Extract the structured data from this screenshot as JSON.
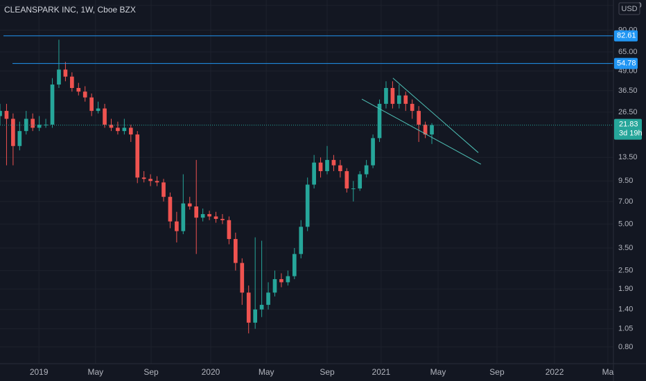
{
  "chart_data": {
    "type": "candlestick",
    "title": "CLEANSPARK INC, 1W, Cboe BZX",
    "currency": "USD",
    "countdown": "3d 19h",
    "x": [
      0,
      2,
      4,
      6,
      8,
      10,
      12,
      14,
      16,
      18,
      20,
      22,
      24,
      26,
      28,
      30,
      32,
      34,
      36,
      38,
      40,
      42,
      44,
      46,
      48,
      50,
      52,
      54,
      56,
      58,
      60,
      62,
      64,
      66,
      68,
      70,
      72,
      74,
      76,
      78,
      80,
      82,
      84,
      86,
      88,
      90,
      92,
      94,
      96,
      98,
      100,
      102,
      104,
      106,
      108,
      110,
      112,
      114,
      116,
      118,
      120,
      122,
      124,
      126,
      128,
      130,
      132
    ],
    "open": [
      25,
      27,
      24,
      16,
      20,
      24,
      21,
      22,
      22,
      40,
      50,
      45,
      38,
      36,
      33,
      27,
      28,
      22,
      21,
      20,
      21,
      19,
      10,
      9.8,
      9.5,
      9.3,
      7.5,
      5.2,
      4.5,
      6.8,
      6.5,
      5.5,
      5.8,
      5.6,
      5.4,
      5.3,
      4.0,
      2.8,
      1.8,
      1.15,
      1.4,
      1.5,
      1.8,
      2.2,
      2.1,
      2.3,
      3.2,
      4.8,
      9.0,
      12.5,
      11,
      13,
      12,
      11,
      8.5,
      8.5,
      10.5,
      12,
      18,
      30,
      38,
      30,
      34,
      30,
      27,
      22,
      19
    ],
    "high": [
      30,
      30,
      26,
      23,
      27,
      26,
      25,
      24,
      44,
      78,
      56,
      48,
      41,
      39,
      35,
      31,
      30,
      24,
      23,
      24,
      22,
      20,
      11,
      10.5,
      10.2,
      9.8,
      8,
      6,
      10.5,
      7.5,
      13,
      6.3,
      6.1,
      6,
      5.8,
      5.6,
      4.4,
      3.0,
      2.0,
      4.1,
      3.9,
      2.1,
      2.5,
      2.4,
      2.5,
      3.5,
      5.3,
      10,
      14,
      13.5,
      16,
      14,
      13,
      11.5,
      9.5,
      11,
      13,
      19,
      32,
      42,
      42,
      40,
      36,
      32,
      29,
      23,
      22.5
    ],
    "low": [
      22,
      12,
      12,
      15,
      19,
      20,
      20,
      21,
      21,
      38,
      42,
      36,
      34,
      31,
      25,
      26,
      21,
      20,
      19,
      19,
      17,
      9.2,
      9.3,
      8.8,
      8.8,
      7,
      4.7,
      3.8,
      4.3,
      6.2,
      3.2,
      5.2,
      5.3,
      5.1,
      5.0,
      3.7,
      2.5,
      1.5,
      0.98,
      1.05,
      1.25,
      1.4,
      1.7,
      1.95,
      2.0,
      2.2,
      3.0,
      4.5,
      8.5,
      10,
      10.5,
      11,
      10,
      8,
      7,
      8.2,
      10,
      11.5,
      17,
      28,
      28,
      28,
      27,
      24,
      17,
      18,
      16.5
    ],
    "close": [
      27,
      24,
      16,
      20,
      24,
      21,
      22,
      22,
      40,
      50,
      45,
      38,
      36,
      33,
      27,
      28,
      22,
      21,
      20,
      21,
      19,
      10,
      9.8,
      9.5,
      9.3,
      7.5,
      5.2,
      4.5,
      6.8,
      6.5,
      5.5,
      5.8,
      5.6,
      5.4,
      5.3,
      4.0,
      2.8,
      1.8,
      1.15,
      1.4,
      1.5,
      1.8,
      2.2,
      2.1,
      2.3,
      3.2,
      4.8,
      9.0,
      12.5,
      11,
      13,
      12,
      11,
      8.5,
      8.5,
      10.5,
      12,
      18,
      30,
      38,
      30,
      34,
      30,
      27,
      22,
      19,
      21.83
    ],
    "up_color": "#26a69a",
    "down_color": "#ef5350",
    "xlim": [
      0,
      187.5
    ],
    "xticks": [
      {
        "value": 11.9,
        "label": "2019"
      },
      {
        "value": 29.2,
        "label": "May"
      },
      {
        "value": 46.2,
        "label": "Sep"
      },
      {
        "value": 64.4,
        "label": "2020"
      },
      {
        "value": 81.4,
        "label": "May"
      },
      {
        "value": 100,
        "label": "Sep"
      },
      {
        "value": 116.5,
        "label": "2021"
      },
      {
        "value": 133.9,
        "label": "May"
      },
      {
        "value": 151.9,
        "label": "Sep"
      },
      {
        "value": 169.5,
        "label": "2022"
      },
      {
        "value": 185.8,
        "label": "Ma"
      }
    ],
    "ylim": [
      0.624,
      141
    ],
    "log_scale": true,
    "grid": true,
    "yticks": [
      {
        "value": 0.8,
        "label": "0.80"
      },
      {
        "value": 1.05,
        "label": "1.05"
      },
      {
        "value": 1.4,
        "label": "1.40"
      },
      {
        "value": 1.9,
        "label": "1.90"
      },
      {
        "value": 2.5,
        "label": "2.50"
      },
      {
        "value": 3.5,
        "label": "3.50"
      },
      {
        "value": 5,
        "label": "5.00"
      },
      {
        "value": 7,
        "label": "7.00"
      },
      {
        "value": 9.5,
        "label": "9.50"
      },
      {
        "value": 13.5,
        "label": "13.50"
      },
      {
        "value": 26.5,
        "label": "26.50"
      },
      {
        "value": 36.5,
        "label": "36.50"
      },
      {
        "value": 49,
        "label": "49.00"
      },
      {
        "value": 65,
        "label": "65.00"
      },
      {
        "value": 90,
        "label": "90.00"
      },
      {
        "value": 130,
        "label": "130.00"
      }
    ],
    "hlines": [
      82.61,
      54.78
    ],
    "hline_color": "#2196f3",
    "trendlines": [
      {
        "x": [
          120.1,
          146.2
        ],
        "y": [
          44,
          14.5
        ]
      },
      {
        "x": [
          110.6,
          147
        ],
        "y": [
          32.2,
          12.2
        ]
      }
    ],
    "trendline_color": "#4fc3b8"
  }
}
